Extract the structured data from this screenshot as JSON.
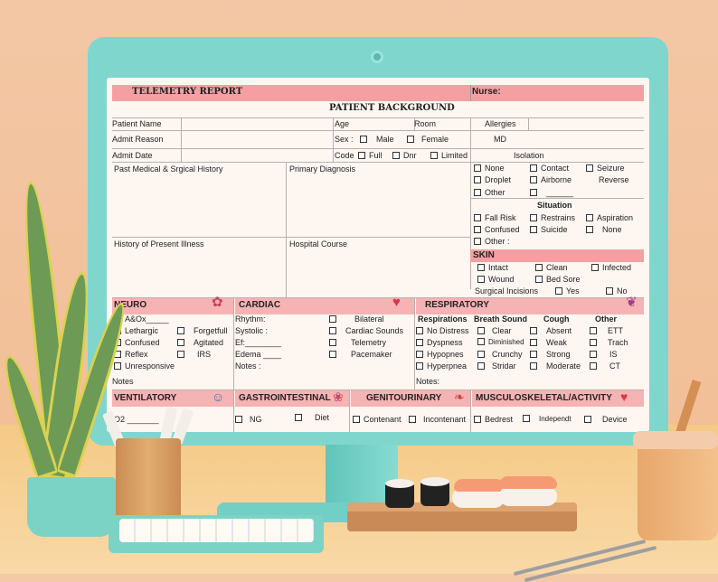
{
  "header": {
    "title": "TELEMETRY REPORT",
    "nurse_label": "Nurse:",
    "section_title": "PATIENT BACKGROUND"
  },
  "background": {
    "patient_name": "Patient Name",
    "age": "Age",
    "room": "Room",
    "allergies": "Allergies",
    "admit_reason": "Admit Reason",
    "sex": "Sex :",
    "male": "Male",
    "female": "Female",
    "md": "MD",
    "admit_date": "Admit Date",
    "code": "Code",
    "full": "Full",
    "dnr": "Dnr",
    "limited": "Limited",
    "isolation": "Isolation",
    "pmh": "Past Medical & Srgical History",
    "primary_diagnosis": "Primary Diagnosis",
    "hpi": "History of Present  Illness",
    "hospital_course": "Hospital Course"
  },
  "isolation": {
    "none": "None",
    "contact": "Contact",
    "seizure": "Seizure",
    "droplet": "Droplet",
    "airborne": "Airborne",
    "reverse": "Reverse",
    "other": "Other",
    "blank": "______"
  },
  "situation": {
    "title": "Situation",
    "fall_risk": "Fall Risk",
    "restrains": "Restrains",
    "aspiration": "Aspiration",
    "confused": "Confused",
    "suicide": "Suicide",
    "none": "None",
    "other": "Other :"
  },
  "skin": {
    "title": "SKIN",
    "intact": "Intact",
    "clean": "Clean",
    "infected": "Infected",
    "wound": "Wound",
    "bed_sore": "Bed Sore",
    "surgical": "Surgical Incisions",
    "yes": "Yes",
    "no": "No"
  },
  "neuro": {
    "title": "NEURO",
    "aox": "A&Ox_____",
    "lethargic": "Lethargic",
    "forgetfull": "Forgetfull",
    "confused": "Confused",
    "agitated": "Agitated",
    "reflex": "Reflex",
    "irs": "IRS",
    "unresponsive": "Unresponsive",
    "notes": "Notes"
  },
  "cardiac": {
    "title": "CARDIAC",
    "rhythm": "Rhythm:",
    "systolic": "Systolic :",
    "ef": "Ef:________",
    "edema": "Edema ____",
    "notes": "Notes :",
    "bilateral": "Bilateral",
    "cardiac_sounds": "Cardiac Sounds",
    "telemetry": "Telemetry",
    "pacemaker": "Pacemaker"
  },
  "respiratory": {
    "title": "RESPIRATORY",
    "col_resp": "Respirations",
    "col_breath": "Breath Sound",
    "col_cough": "Cough",
    "col_other": "Other",
    "no_distress": "No Distress",
    "dyspness": "Dyspness",
    "hypopnes": "Hypopnes",
    "hyperpnea": "Hyperpnea",
    "clear": "Clear",
    "diminished": "Diminished",
    "crunchy": "Crunchy",
    "stridar": "Stridar",
    "absent": "Absent",
    "weak": "Weak",
    "strong": "Strong",
    "moderate": "Moderate",
    "ett": "ETT",
    "trach": "Trach",
    "is": "IS",
    "ct": "CT",
    "notes": "Notes:"
  },
  "bottom": {
    "ventilatory": "VENTILATORY",
    "o2": "O2 _______",
    "gastro": "GASTROINTESTINAL",
    "ng": "NG",
    "diet": "Diet",
    "genito": "GENITOURINARY",
    "contenant": "Contenant",
    "incontenant": "Incontenant",
    "musculo": "MUSCULOSKELETAL/ACTIVITY",
    "bedrest": "Bedrest",
    "independt": "Independt",
    "device": "Device"
  },
  "colors": {
    "header_pink": "#f4a0a3",
    "monitor": "#7fd6cd",
    "paper": "#fdf6f1"
  },
  "icons": [
    "brain-icon",
    "heart-icon",
    "lungs-icon",
    "person-icon",
    "stomach-icon",
    "kidneys-icon",
    "heart-pulse-icon"
  ]
}
